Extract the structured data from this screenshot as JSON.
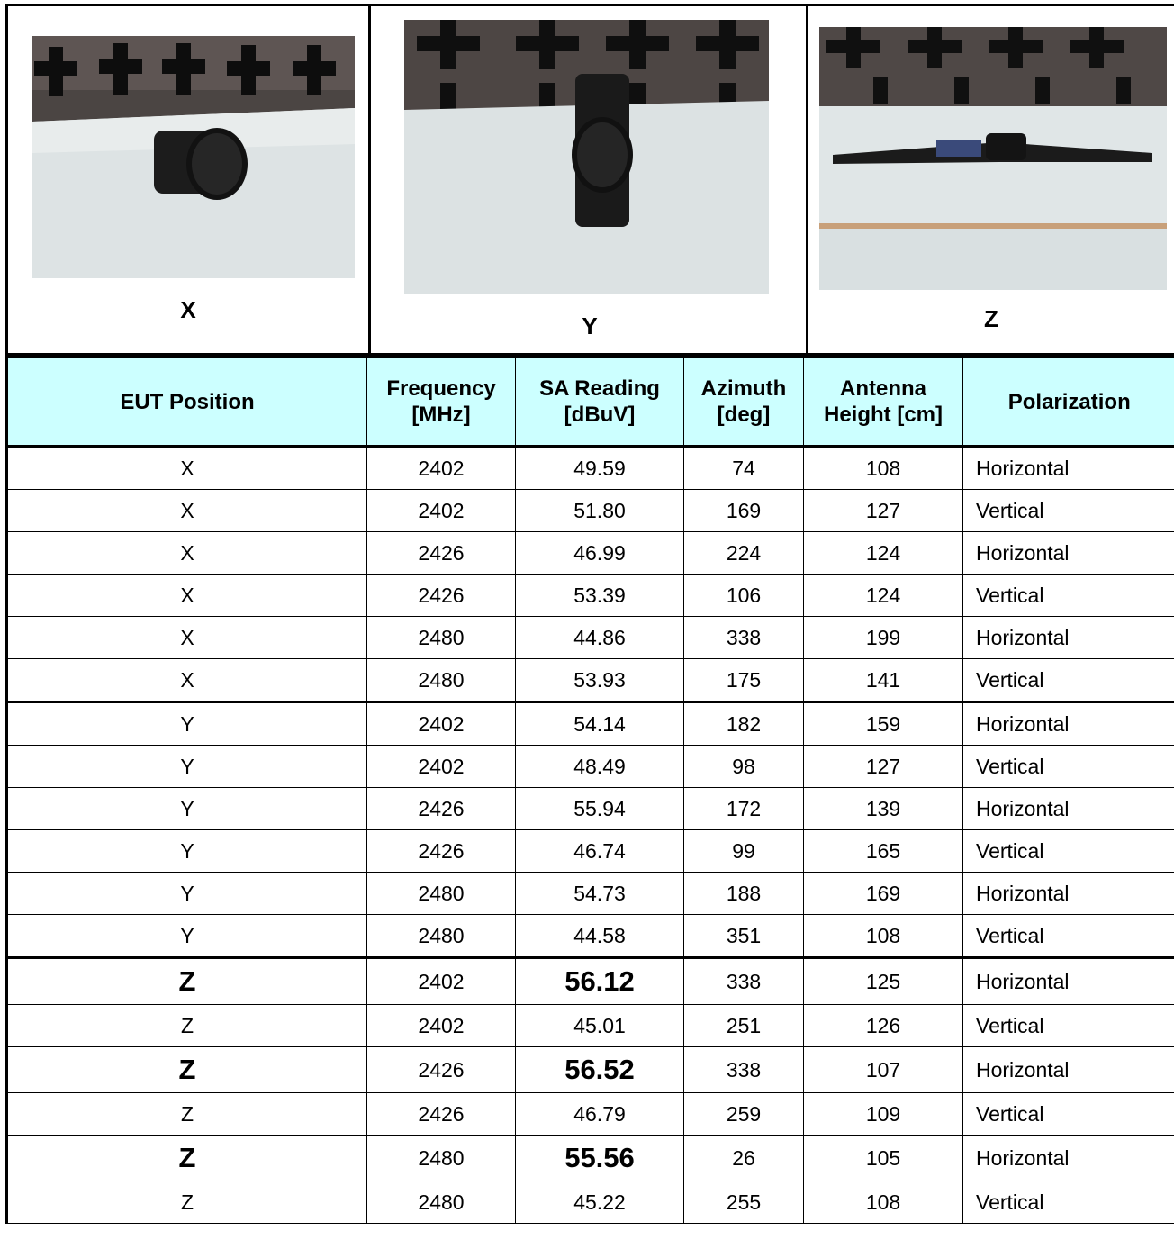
{
  "photos": [
    {
      "label": "X"
    },
    {
      "label": "Y"
    },
    {
      "label": "Z"
    }
  ],
  "table": {
    "headers": {
      "position": "EUT Position",
      "freq_1": "Frequency",
      "freq_2": "[MHz]",
      "sa_1": "SA Reading",
      "sa_2": "[dBuV]",
      "az_1": "Azimuth",
      "az_2": "[deg]",
      "ant_1": "Antenna",
      "ant_2": "Height [cm]",
      "pol": "Polarization"
    },
    "rows": [
      {
        "pos": "X",
        "freq": "2402",
        "sa": "49.59",
        "az": "74",
        "ant": "108",
        "pol": "Horizontal"
      },
      {
        "pos": "X",
        "freq": "2402",
        "sa": "51.80",
        "az": "169",
        "ant": "127",
        "pol": "Vertical"
      },
      {
        "pos": "X",
        "freq": "2426",
        "sa": "46.99",
        "az": "224",
        "ant": "124",
        "pol": "Horizontal"
      },
      {
        "pos": "X",
        "freq": "2426",
        "sa": "53.39",
        "az": "106",
        "ant": "124",
        "pol": "Vertical"
      },
      {
        "pos": "X",
        "freq": "2480",
        "sa": "44.86",
        "az": "338",
        "ant": "199",
        "pol": "Horizontal"
      },
      {
        "pos": "X",
        "freq": "2480",
        "sa": "53.93",
        "az": "175",
        "ant": "141",
        "pol": "Vertical"
      },
      {
        "pos": "Y",
        "freq": "2402",
        "sa": "54.14",
        "az": "182",
        "ant": "159",
        "pol": "Horizontal"
      },
      {
        "pos": "Y",
        "freq": "2402",
        "sa": "48.49",
        "az": "98",
        "ant": "127",
        "pol": "Vertical"
      },
      {
        "pos": "Y",
        "freq": "2426",
        "sa": "55.94",
        "az": "172",
        "ant": "139",
        "pol": "Horizontal"
      },
      {
        "pos": "Y",
        "freq": "2426",
        "sa": "46.74",
        "az": "99",
        "ant": "165",
        "pol": "Vertical"
      },
      {
        "pos": "Y",
        "freq": "2480",
        "sa": "54.73",
        "az": "188",
        "ant": "169",
        "pol": "Horizontal"
      },
      {
        "pos": "Y",
        "freq": "2480",
        "sa": "44.58",
        "az": "351",
        "ant": "108",
        "pol": "Vertical"
      },
      {
        "pos": "Z",
        "freq": "2402",
        "sa": "56.12",
        "az": "338",
        "ant": "125",
        "pol": "Horizontal"
      },
      {
        "pos": "Z",
        "freq": "2402",
        "sa": "45.01",
        "az": "251",
        "ant": "126",
        "pol": "Vertical"
      },
      {
        "pos": "Z",
        "freq": "2426",
        "sa": "56.52",
        "az": "338",
        "ant": "107",
        "pol": "Horizontal"
      },
      {
        "pos": "Z",
        "freq": "2426",
        "sa": "46.79",
        "az": "259",
        "ant": "109",
        "pol": "Vertical"
      },
      {
        "pos": "Z",
        "freq": "2480",
        "sa": "55.56",
        "az": "26",
        "ant": "105",
        "pol": "Horizontal"
      },
      {
        "pos": "Z",
        "freq": "2480",
        "sa": "45.22",
        "az": "255",
        "ant": "108",
        "pol": "Vertical"
      }
    ]
  }
}
